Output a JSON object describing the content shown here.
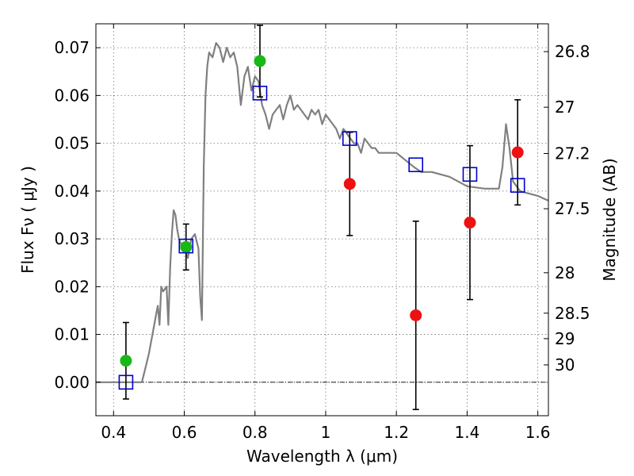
{
  "chart_data": {
    "type": "scatter",
    "title": "",
    "xlabel": "Wavelength  λ (μm)",
    "ylabel": "Flux  Fν  ( μJy )",
    "y2label": "Magnitude (AB)",
    "xlim": [
      0.35,
      1.63
    ],
    "ylim": [
      -0.007,
      0.075
    ],
    "grid": true,
    "x_ticks": [
      {
        "value": 0.4,
        "label": "0.4"
      },
      {
        "value": 0.6,
        "label": "0.6"
      },
      {
        "value": 0.8,
        "label": "0.8"
      },
      {
        "value": 1.0,
        "label": "1"
      },
      {
        "value": 1.2,
        "label": "1.2"
      },
      {
        "value": 1.4,
        "label": "1.4"
      },
      {
        "value": 1.6,
        "label": "1.6"
      }
    ],
    "y_ticks": [
      {
        "value": 0.0,
        "label": "0.00"
      },
      {
        "value": 0.01,
        "label": "0.01"
      },
      {
        "value": 0.02,
        "label": "0.02"
      },
      {
        "value": 0.03,
        "label": "0.03"
      },
      {
        "value": 0.04,
        "label": "0.04"
      },
      {
        "value": 0.05,
        "label": "0.05"
      },
      {
        "value": 0.06,
        "label": "0.06"
      },
      {
        "value": 0.07,
        "label": "0.07"
      }
    ],
    "y2_ticks": [
      {
        "mag": 26.8,
        "label": "26.8"
      },
      {
        "mag": 27.0,
        "label": "27"
      },
      {
        "mag": 27.2,
        "label": "27.2"
      },
      {
        "mag": 27.5,
        "label": "27.5"
      },
      {
        "mag": 28.0,
        "label": "28"
      },
      {
        "mag": 28.5,
        "label": "28.5"
      },
      {
        "mag": 29.0,
        "label": "29"
      },
      {
        "mag": 30.0,
        "label": "30"
      }
    ],
    "colors": {
      "spectrum": "#808080",
      "model": "#0000cc",
      "green": "#18b818",
      "red": "#ee1111",
      "errorbar": "#000000",
      "zeroline": "#000000"
    },
    "series": [
      {
        "kind": "spectrum",
        "x": [
          0.35,
          0.48,
          0.49,
          0.5,
          0.51,
          0.52,
          0.525,
          0.53,
          0.535,
          0.54,
          0.55,
          0.555,
          0.56,
          0.565,
          0.57,
          0.575,
          0.58,
          0.585,
          0.59,
          0.6,
          0.61,
          0.62,
          0.63,
          0.64,
          0.645,
          0.65,
          0.655,
          0.66,
          0.665,
          0.67,
          0.68,
          0.69,
          0.7,
          0.71,
          0.72,
          0.73,
          0.74,
          0.75,
          0.76,
          0.77,
          0.78,
          0.79,
          0.8,
          0.81,
          0.82,
          0.83,
          0.84,
          0.85,
          0.86,
          0.87,
          0.88,
          0.89,
          0.9,
          0.91,
          0.92,
          0.93,
          0.94,
          0.95,
          0.96,
          0.97,
          0.98,
          0.99,
          1.0,
          1.01,
          1.02,
          1.03,
          1.04,
          1.05,
          1.06,
          1.07,
          1.08,
          1.09,
          1.1,
          1.11,
          1.12,
          1.13,
          1.14,
          1.15,
          1.2,
          1.25,
          1.27,
          1.3,
          1.35,
          1.4,
          1.45,
          1.49,
          1.5,
          1.51,
          1.52,
          1.53,
          1.55,
          1.6,
          1.63
        ],
        "y": [
          0.0,
          0.0,
          0.003,
          0.006,
          0.01,
          0.014,
          0.016,
          0.012,
          0.02,
          0.019,
          0.02,
          0.012,
          0.024,
          0.031,
          0.036,
          0.035,
          0.032,
          0.03,
          0.029,
          0.028,
          0.026,
          0.03,
          0.031,
          0.028,
          0.018,
          0.013,
          0.045,
          0.06,
          0.066,
          0.069,
          0.068,
          0.071,
          0.07,
          0.067,
          0.07,
          0.068,
          0.069,
          0.066,
          0.058,
          0.064,
          0.066,
          0.061,
          0.064,
          0.063,
          0.058,
          0.056,
          0.053,
          0.056,
          0.057,
          0.058,
          0.055,
          0.058,
          0.06,
          0.057,
          0.058,
          0.057,
          0.056,
          0.055,
          0.057,
          0.056,
          0.057,
          0.054,
          0.056,
          0.055,
          0.054,
          0.053,
          0.051,
          0.053,
          0.052,
          0.051,
          0.05,
          0.05,
          0.048,
          0.051,
          0.05,
          0.049,
          0.049,
          0.048,
          0.048,
          0.045,
          0.044,
          0.044,
          0.043,
          0.041,
          0.0405,
          0.0405,
          0.045,
          0.054,
          0.049,
          0.042,
          0.04,
          0.039,
          0.038
        ]
      },
      {
        "kind": "model",
        "marker": "square",
        "x": [
          0.435,
          0.605,
          0.814,
          1.068,
          1.255,
          1.408,
          1.543
        ],
        "y": [
          0.0,
          0.0285,
          0.0605,
          0.051,
          0.0455,
          0.0435,
          0.0412
        ]
      },
      {
        "kind": "detection",
        "marker": "circle",
        "color": "green",
        "x": [
          0.435,
          0.605,
          0.814
        ],
        "y": [
          0.0045,
          0.0283,
          0.0672
        ],
        "err": [
          0.008,
          0.0048,
          0.0075
        ]
      },
      {
        "kind": "upper",
        "marker": "circle",
        "color": "red",
        "x": [
          1.068,
          1.255,
          1.408,
          1.543
        ],
        "y": [
          0.0415,
          0.014,
          0.0334,
          0.0481
        ],
        "err": [
          0.0108,
          0.0197,
          0.0161,
          0.011
        ]
      }
    ]
  }
}
